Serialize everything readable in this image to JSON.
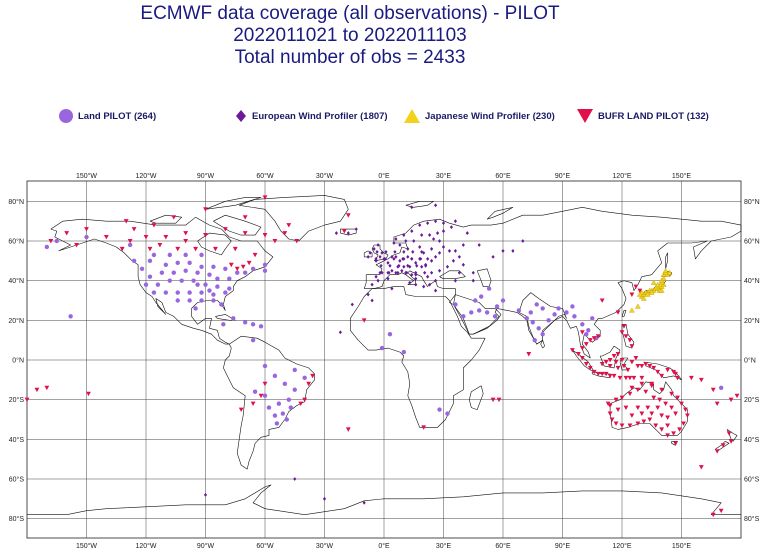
{
  "title": {
    "line1": "ECMWF data coverage (all observations) - PILOT",
    "line2": "2022011021 to 2022011103",
    "line3": "Total number of obs = 2433"
  },
  "legend": [
    {
      "label": "Land PILOT (264)",
      "symbol": "circle",
      "color": "#9966e0"
    },
    {
      "label": "European Wind Profiler (1807)",
      "symbol": "diamond",
      "color": "#6a1a9a"
    },
    {
      "label": "Japanese Wind Profiler (230)",
      "symbol": "triangle",
      "color": "#f2d21a"
    },
    {
      "label": "BUFR LAND PILOT (132)",
      "symbol": "inverted-triangle",
      "color": "#e0104a"
    }
  ],
  "axes": {
    "lon_labels": [
      "150°W",
      "120°W",
      "90°W",
      "60°W",
      "30°W",
      "0°E",
      "30°E",
      "60°E",
      "90°E",
      "120°E",
      "150°E"
    ],
    "lat_labels": [
      "80°N",
      "60°N",
      "40°N",
      "20°N",
      "0°N",
      "20°S",
      "40°S",
      "60°S",
      "80°S"
    ]
  },
  "colors": {
    "coast": "#111111",
    "grid": "#444444",
    "title": "#1a1a80"
  }
}
